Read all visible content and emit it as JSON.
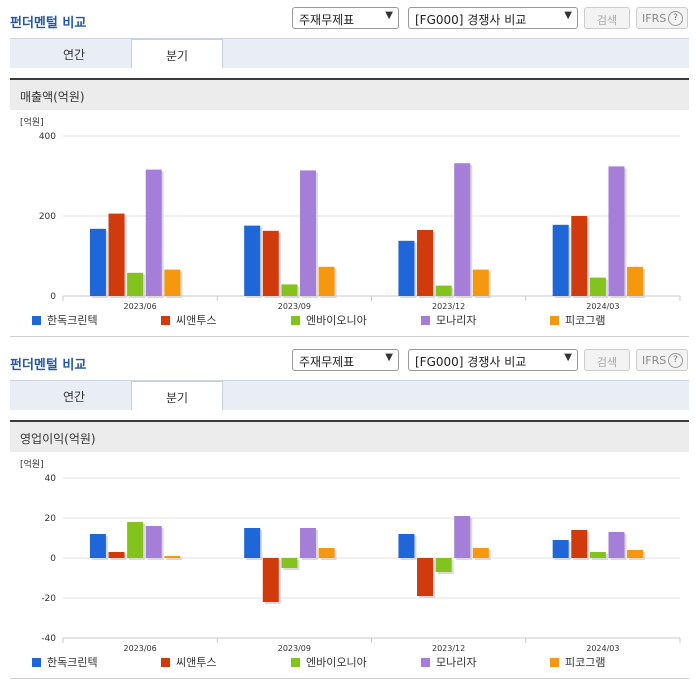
{
  "panels": [
    {
      "title": "펀더멘털 비교",
      "select_statement": "주재무제표",
      "select_compare": "[FG000] 경쟁사 비교",
      "search_label": "검색",
      "ifrs_label": "IFRS",
      "tabs": [
        "연간",
        "분기"
      ],
      "active_tab": 1,
      "subtitle": "매출액(억원)"
    },
    {
      "title": "펀더멘털 비교",
      "select_statement": "주재무제표",
      "select_compare": "[FG000] 경쟁사 비교",
      "search_label": "검색",
      "ifrs_label": "IFRS",
      "tabs": [
        "연간",
        "분기"
      ],
      "active_tab": 1,
      "subtitle": "영업이익(억원)"
    }
  ],
  "chart_data": [
    {
      "type": "bar",
      "title": "매출액(억원)",
      "ylabel": "[억원]",
      "ylim": [
        0,
        400
      ],
      "yticks": [
        0,
        200,
        400
      ],
      "categories": [
        "2023/06",
        "2023/09",
        "2023/12",
        "2024/03"
      ],
      "series": [
        {
          "name": "한독크린텍",
          "color": "#1f66d8",
          "values": [
            168,
            176,
            138,
            178
          ]
        },
        {
          "name": "씨앤투스",
          "color": "#d03a0c",
          "values": [
            206,
            163,
            165,
            200
          ]
        },
        {
          "name": "엔바이오니아",
          "color": "#84c21e",
          "values": [
            58,
            29,
            26,
            46
          ]
        },
        {
          "name": "모나리자",
          "color": "#a57ed8",
          "values": [
            316,
            314,
            332,
            324
          ]
        },
        {
          "name": "피코그램",
          "color": "#f5970f",
          "values": [
            66,
            73,
            66,
            73
          ]
        }
      ],
      "legend": "bottom"
    },
    {
      "type": "bar",
      "title": "영업이익(억원)",
      "ylabel": "[억원]",
      "ylim": [
        -40,
        40
      ],
      "yticks": [
        -40,
        -20,
        0,
        20,
        40
      ],
      "categories": [
        "2023/06",
        "2023/09",
        "2023/12",
        "2024/03"
      ],
      "series": [
        {
          "name": "한독크린텍",
          "color": "#1f66d8",
          "values": [
            12,
            15,
            12,
            9
          ]
        },
        {
          "name": "씨앤투스",
          "color": "#d03a0c",
          "values": [
            3,
            -22,
            -19,
            14
          ]
        },
        {
          "name": "엔바이오니아",
          "color": "#84c21e",
          "values": [
            18,
            -5,
            -7,
            3
          ]
        },
        {
          "name": "모나리자",
          "color": "#a57ed8",
          "values": [
            16,
            15,
            21,
            13
          ]
        },
        {
          "name": "피코그램",
          "color": "#f5970f",
          "values": [
            1,
            5,
            5,
            4
          ]
        }
      ],
      "legend": "bottom"
    }
  ]
}
